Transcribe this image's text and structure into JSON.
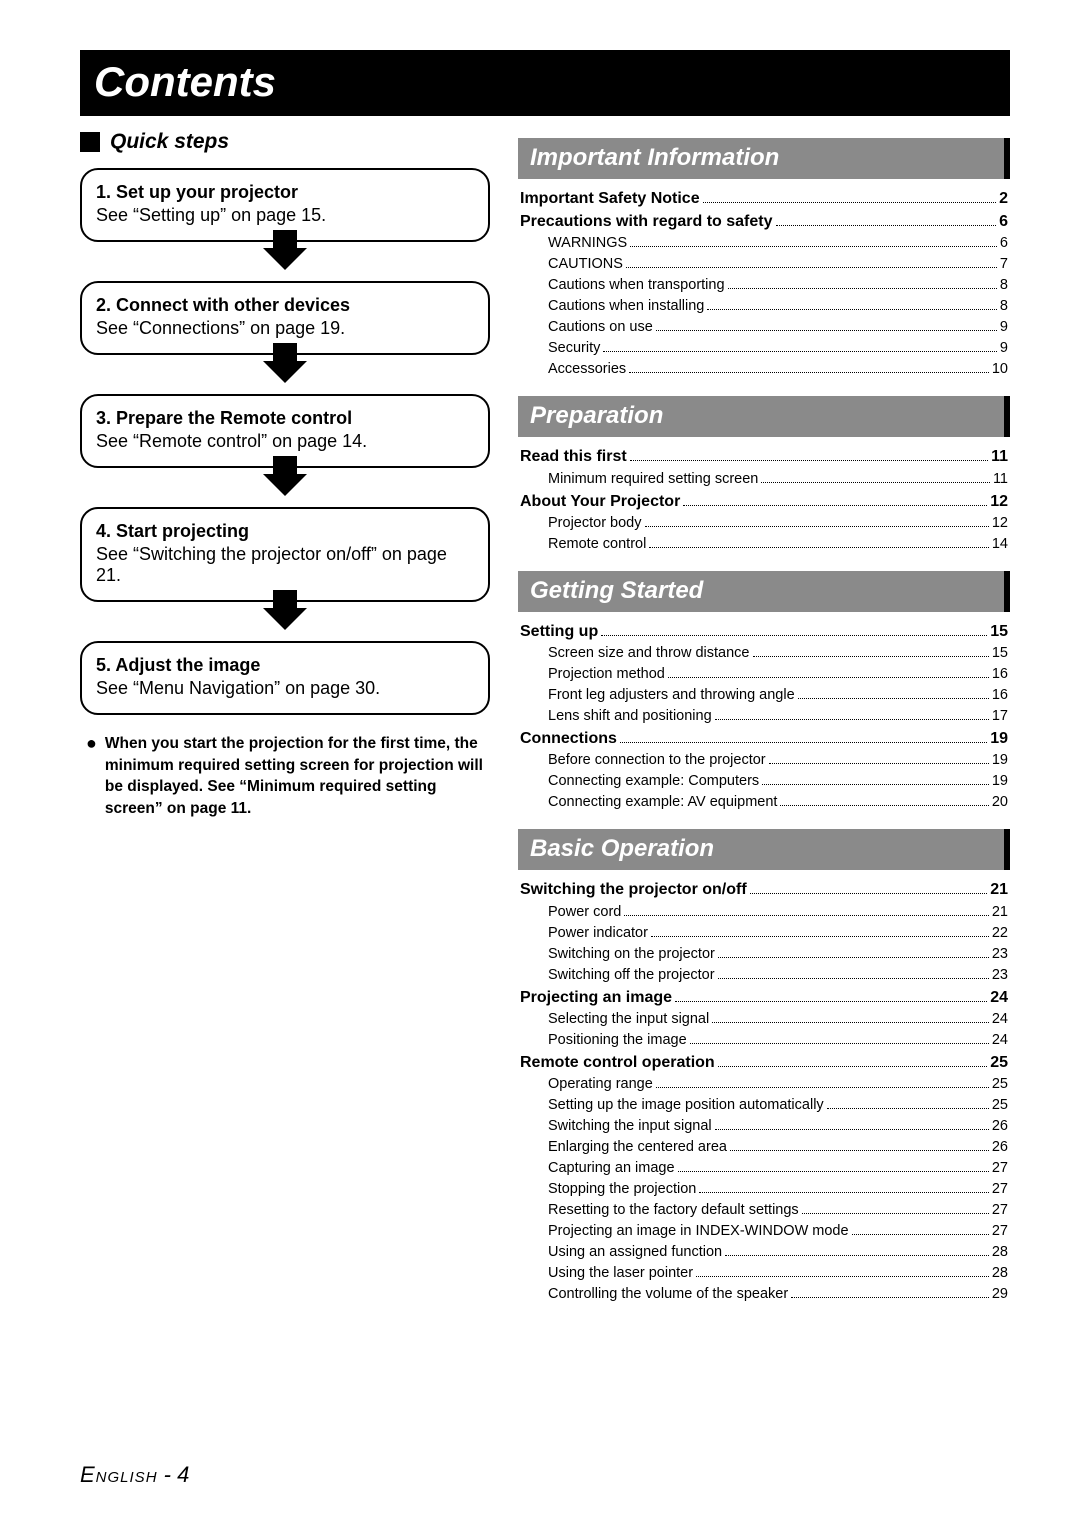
{
  "title": "Contents",
  "quick_steps_label": "Quick steps",
  "steps": [
    {
      "title": "1. Set up your projector",
      "desc": "See “Setting up” on page 15."
    },
    {
      "title": "2. Connect with other devices",
      "desc": "See “Connections” on page 19."
    },
    {
      "title": "3. Prepare the Remote control",
      "desc": "See “Remote control” on page 14."
    },
    {
      "title": "4. Start projecting",
      "desc": "See “Switching the projector on/off” on page 21."
    },
    {
      "title": "5. Adjust the image",
      "desc": "See “Menu Navigation” on page 30."
    }
  ],
  "note_text": "When you start the projection for the first time, the minimum required setting screen for projection will be displayed.\nSee “Minimum required setting screen” on page 11.",
  "sections": [
    {
      "header": "Important Information",
      "entries": [
        {
          "label": "Important Safety Notice",
          "page": "2",
          "bold": true
        },
        {
          "label": "Precautions with regard to safety",
          "page": "6",
          "bold": true
        },
        {
          "label": "WARNINGS",
          "page": "6",
          "sub": true
        },
        {
          "label": "CAUTIONS",
          "page": "7",
          "sub": true
        },
        {
          "label": "Cautions when transporting",
          "page": "8",
          "sub": true
        },
        {
          "label": "Cautions when installing",
          "page": "8",
          "sub": true
        },
        {
          "label": "Cautions on use",
          "page": "9",
          "sub": true
        },
        {
          "label": "Security",
          "page": "9",
          "sub": true
        },
        {
          "label": "Accessories",
          "page": "10",
          "sub": true
        }
      ]
    },
    {
      "header": "Preparation",
      "entries": [
        {
          "label": "Read this first",
          "page": "11",
          "bold": true
        },
        {
          "label": "Minimum required setting screen",
          "page": "11",
          "sub": true
        },
        {
          "label": "About Your Projector",
          "page": "12",
          "bold": true
        },
        {
          "label": "Projector body",
          "page": "12",
          "sub": true
        },
        {
          "label": "Remote control",
          "page": "14",
          "sub": true
        }
      ]
    },
    {
      "header": "Getting Started",
      "entries": [
        {
          "label": "Setting up",
          "page": "15",
          "bold": true
        },
        {
          "label": "Screen size and throw distance",
          "page": "15",
          "sub": true
        },
        {
          "label": "Projection method",
          "page": "16",
          "sub": true
        },
        {
          "label": "Front leg adjusters and throwing angle",
          "page": "16",
          "sub": true
        },
        {
          "label": "Lens shift and positioning",
          "page": "17",
          "sub": true
        },
        {
          "label": "Connections",
          "page": "19",
          "bold": true
        },
        {
          "label": "Before connection to the projector",
          "page": "19",
          "sub": true
        },
        {
          "label": "Connecting example: Computers",
          "page": "19",
          "sub": true
        },
        {
          "label": "Connecting example: AV equipment",
          "page": "20",
          "sub": true
        }
      ]
    },
    {
      "header": "Basic Operation",
      "entries": [
        {
          "label": "Switching the projector on/off",
          "page": "21",
          "bold": true
        },
        {
          "label": "Power cord",
          "page": "21",
          "sub": true
        },
        {
          "label": "Power indicator",
          "page": "22",
          "sub": true
        },
        {
          "label": "Switching on the projector",
          "page": "23",
          "sub": true
        },
        {
          "label": "Switching off the projector",
          "page": "23",
          "sub": true
        },
        {
          "label": "Projecting an image",
          "page": "24",
          "bold": true
        },
        {
          "label": "Selecting the input signal",
          "page": "24",
          "sub": true
        },
        {
          "label": "Positioning the image",
          "page": "24",
          "sub": true
        },
        {
          "label": "Remote control operation",
          "page": "25",
          "bold": true
        },
        {
          "label": "Operating range",
          "page": "25",
          "sub": true
        },
        {
          "label": "Setting up the image position automatically",
          "page": "25",
          "sub": true
        },
        {
          "label": "Switching the input signal",
          "page": "26",
          "sub": true
        },
        {
          "label": "Enlarging the centered area",
          "page": "26",
          "sub": true
        },
        {
          "label": "Capturing an image",
          "page": "27",
          "sub": true
        },
        {
          "label": "Stopping the projection",
          "page": "27",
          "sub": true
        },
        {
          "label": "Resetting to the factory default settings",
          "page": "27",
          "sub": true
        },
        {
          "label": "Projecting an image in INDEX-WINDOW mode",
          "page": "27",
          "sub": true
        },
        {
          "label": "Using an assigned function",
          "page": "28",
          "sub": true
        },
        {
          "label": "Using the laser pointer",
          "page": "28",
          "sub": true
        },
        {
          "label": "Controlling the volume of the speaker",
          "page": "29",
          "sub": true
        }
      ]
    }
  ],
  "footer_lang": "English",
  "footer_page": "4",
  "colors": {
    "title_bg": "#000000",
    "title_fg": "#ffffff",
    "section_bg": "#8a8a8a",
    "section_border": "#000000",
    "page_bg": "#ffffff"
  }
}
